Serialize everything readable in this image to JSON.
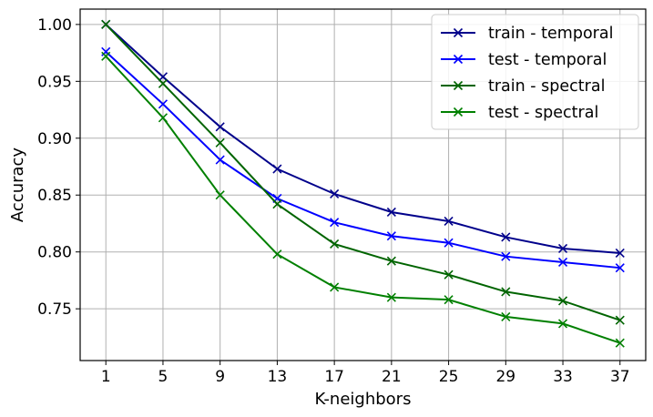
{
  "chart_data": {
    "type": "line",
    "title": "",
    "xlabel": "K-neighbors",
    "ylabel": "Accuracy",
    "x": [
      1,
      5,
      9,
      13,
      17,
      21,
      25,
      29,
      33,
      37
    ],
    "x_tick_labels": [
      "1",
      "5",
      "9",
      "13",
      "17",
      "21",
      "25",
      "29",
      "33",
      "37"
    ],
    "y_tick_values": [
      0.75,
      0.8,
      0.85,
      0.9,
      0.95,
      1.0
    ],
    "y_tick_labels": [
      "0.75",
      "0.80",
      "0.85",
      "0.90",
      "0.95",
      "1.00"
    ],
    "xlim": [
      -0.8,
      38.8
    ],
    "ylim": [
      0.7045,
      1.0135
    ],
    "grid": true,
    "legend_position": "top-right",
    "marker": "x",
    "series": [
      {
        "name": "train - temporal",
        "color": "#00008b",
        "values": [
          1.0,
          0.954,
          0.91,
          0.873,
          0.851,
          0.835,
          0.827,
          0.813,
          0.803,
          0.799
        ]
      },
      {
        "name": "test - temporal",
        "color": "#0000ff",
        "values": [
          0.976,
          0.93,
          0.881,
          0.847,
          0.826,
          0.814,
          0.808,
          0.796,
          0.791,
          0.786
        ]
      },
      {
        "name": "train - spectral",
        "color": "#006400",
        "values": [
          1.0,
          0.948,
          0.896,
          0.842,
          0.807,
          0.792,
          0.78,
          0.765,
          0.757,
          0.74
        ]
      },
      {
        "name": "test - spectral",
        "color": "#008000",
        "values": [
          0.972,
          0.918,
          0.85,
          0.798,
          0.769,
          0.76,
          0.758,
          0.743,
          0.737,
          0.72
        ]
      }
    ]
  }
}
